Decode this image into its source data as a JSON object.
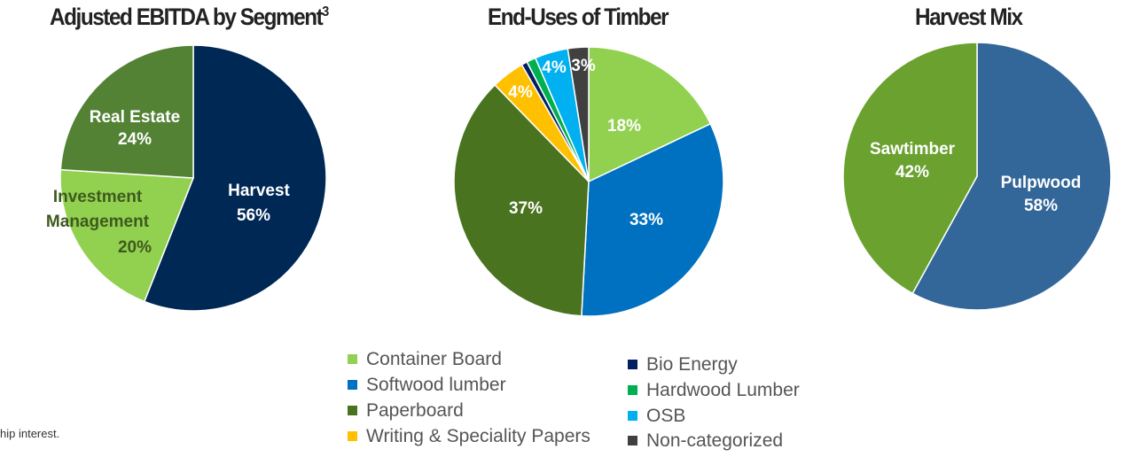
{
  "chart_data": [
    {
      "type": "pie",
      "title": "Adjusted EBITDA by Segment",
      "title_superscript": "3",
      "slices": [
        {
          "label": "Harvest",
          "value": 56,
          "display": "56%",
          "color": "#002855"
        },
        {
          "label": "Investment Management",
          "value": 20,
          "display": "20%",
          "color": "#92d050"
        },
        {
          "label": "Real Estate",
          "value": 24,
          "display": "24%",
          "color": "#548235"
        }
      ]
    },
    {
      "type": "pie",
      "title": "End-Uses of Timber",
      "slices": [
        {
          "label": "Container Board",
          "value": 18,
          "display": "18%",
          "color": "#92d050"
        },
        {
          "label": "Softwood lumber",
          "value": 33,
          "display": "33%",
          "color": "#0070c0"
        },
        {
          "label": "Paperboard",
          "value": 37,
          "display": "37%",
          "color": "#4a7320"
        },
        {
          "label": "Writing & Speciality Papers",
          "value": 4,
          "display": "4%",
          "color": "#ffc000"
        },
        {
          "label": "Bio Energy",
          "value": 0.7,
          "display": "",
          "color": "#002060"
        },
        {
          "label": "Hardwood Lumber",
          "value": 1.1,
          "display": "",
          "color": "#00b050"
        },
        {
          "label": "OSB",
          "value": 4,
          "display": "4%",
          "color": "#00b0f0"
        },
        {
          "label": "Non-categorized",
          "value": 2.5,
          "display": "3%",
          "color": "#404040"
        }
      ],
      "legend": [
        "Container Board",
        "Softwood lumber",
        "Paperboard",
        "Writing & Speciality Papers",
        "Bio Energy",
        "Hardwood Lumber",
        "OSB",
        "Non-categorized"
      ]
    },
    {
      "type": "pie",
      "title": "Harvest Mix",
      "slices": [
        {
          "label": "Pulpwood",
          "value": 58,
          "display": "58%",
          "color": "#336699"
        },
        {
          "label": "Sawtimber",
          "value": 42,
          "display": "42%",
          "color": "#6aa12f"
        }
      ]
    }
  ],
  "footnote": "hip interest."
}
